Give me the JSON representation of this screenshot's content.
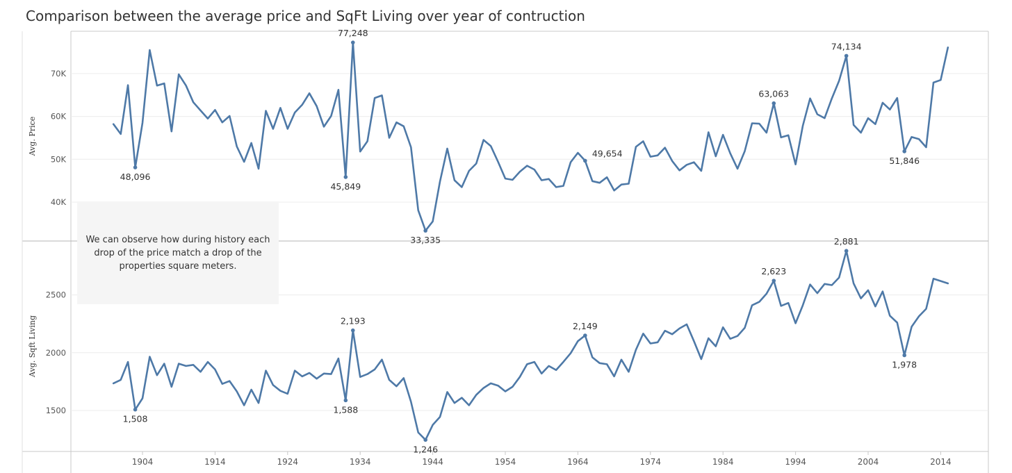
{
  "title": "Comparison between the average price and SqFt Living over year of contruction",
  "annotation": "We can observe how during history each drop of the price match a drop of the properties square meters.",
  "colors": {
    "line": "#4e79a7",
    "grid": "#ececec",
    "axis": "#c8c8c8",
    "text": "#333333"
  },
  "chart_data": [
    {
      "type": "line",
      "ylabel": "Avg. Price",
      "ylim": [
        33000,
        78000
      ],
      "yticks": [
        40000,
        50000,
        60000,
        70000
      ],
      "ytick_labels": [
        "40K",
        "50K",
        "60K",
        "70K"
      ],
      "grid": true,
      "x": [
        1900,
        1901,
        1902,
        1903,
        1904,
        1905,
        1906,
        1907,
        1908,
        1909,
        1910,
        1911,
        1912,
        1913,
        1914,
        1915,
        1916,
        1917,
        1918,
        1919,
        1920,
        1921,
        1922,
        1923,
        1924,
        1925,
        1926,
        1927,
        1928,
        1929,
        1930,
        1931,
        1932,
        1933,
        1934,
        1935,
        1936,
        1937,
        1938,
        1939,
        1940,
        1941,
        1942,
        1943,
        1944,
        1945,
        1946,
        1947,
        1948,
        1949,
        1950,
        1951,
        1952,
        1953,
        1954,
        1955,
        1956,
        1957,
        1958,
        1959,
        1960,
        1961,
        1962,
        1963,
        1964,
        1965,
        1966,
        1967,
        1968,
        1969,
        1970,
        1971,
        1972,
        1973,
        1974,
        1975,
        1976,
        1977,
        1978,
        1979,
        1980,
        1981,
        1982,
        1983,
        1984,
        1985,
        1986,
        1987,
        1988,
        1989,
        1990,
        1991,
        1992,
        1993,
        1994,
        1995,
        1996,
        1997,
        1998,
        1999,
        2000,
        2001,
        2002,
        2003,
        2004,
        2005,
        2006,
        2007,
        2008,
        2009,
        2010,
        2011,
        2012,
        2013,
        2014,
        2015
      ],
      "values": [
        58200,
        55900,
        67300,
        48096,
        58500,
        75500,
        67200,
        67700,
        56500,
        69800,
        67200,
        63300,
        61400,
        59500,
        61500,
        58600,
        60100,
        53000,
        49400,
        53800,
        47800,
        61300,
        57100,
        62000,
        57100,
        60900,
        62700,
        65400,
        62400,
        57600,
        60100,
        66200,
        45849,
        77248,
        51800,
        54200,
        64300,
        64900,
        55000,
        58600,
        57700,
        52800,
        38100,
        33335,
        35500,
        44800,
        52500,
        45100,
        43500,
        47300,
        49000,
        54500,
        53100,
        49400,
        45500,
        45200,
        47100,
        48500,
        47600,
        45100,
        45400,
        43500,
        43800,
        49300,
        51500,
        49654,
        44900,
        44500,
        45800,
        42700,
        44100,
        44300,
        52900,
        54200,
        50600,
        50900,
        52700,
        49600,
        47400,
        48700,
        49300,
        47300,
        56300,
        50700,
        55700,
        51400,
        47800,
        51900,
        58400,
        58300,
        56200,
        63063,
        55100,
        55600,
        48800,
        57800,
        64200,
        60500,
        59600,
        64200,
        68300,
        74134,
        58000,
        56200,
        59600,
        58200,
        63200,
        61600,
        64300,
        51846,
        55200,
        54700,
        52800,
        67900,
        68500,
        76100
      ]
    },
    {
      "type": "line",
      "ylabel": "Avg. Sqft Living",
      "ylim": [
        1240,
        2950
      ],
      "yticks": [
        1500,
        2000,
        2500
      ],
      "ytick_labels": [
        "1500",
        "2000",
        "2500"
      ],
      "grid": true,
      "x": [
        1900,
        1901,
        1902,
        1903,
        1904,
        1905,
        1906,
        1907,
        1908,
        1909,
        1910,
        1911,
        1912,
        1913,
        1914,
        1915,
        1916,
        1917,
        1918,
        1919,
        1920,
        1921,
        1922,
        1923,
        1924,
        1925,
        1926,
        1927,
        1928,
        1929,
        1930,
        1931,
        1932,
        1933,
        1934,
        1935,
        1936,
        1937,
        1938,
        1939,
        1940,
        1941,
        1942,
        1943,
        1944,
        1945,
        1946,
        1947,
        1948,
        1949,
        1950,
        1951,
        1952,
        1953,
        1954,
        1955,
        1956,
        1957,
        1958,
        1959,
        1960,
        1961,
        1962,
        1963,
        1964,
        1965,
        1966,
        1967,
        1968,
        1969,
        1970,
        1971,
        1972,
        1973,
        1974,
        1975,
        1976,
        1977,
        1978,
        1979,
        1980,
        1981,
        1982,
        1983,
        1984,
        1985,
        1986,
        1987,
        1988,
        1989,
        1990,
        1991,
        1992,
        1993,
        1994,
        1995,
        1996,
        1997,
        1998,
        1999,
        2000,
        2001,
        2002,
        2003,
        2004,
        2005,
        2006,
        2007,
        2008,
        2009,
        2010,
        2011,
        2012,
        2013,
        2014,
        2015
      ],
      "values": [
        1735,
        1765,
        1920,
        1508,
        1605,
        1965,
        1805,
        1905,
        1705,
        1905,
        1885,
        1895,
        1835,
        1920,
        1855,
        1730,
        1755,
        1665,
        1545,
        1680,
        1565,
        1845,
        1720,
        1670,
        1645,
        1845,
        1795,
        1825,
        1775,
        1820,
        1815,
        1950,
        1588,
        2193,
        1790,
        1815,
        1855,
        1940,
        1765,
        1710,
        1780,
        1575,
        1310,
        1246,
        1375,
        1445,
        1660,
        1565,
        1610,
        1545,
        1635,
        1695,
        1735,
        1715,
        1665,
        1705,
        1790,
        1900,
        1920,
        1820,
        1885,
        1850,
        1920,
        1995,
        2100,
        2149,
        1960,
        1910,
        1900,
        1795,
        1940,
        1835,
        2025,
        2165,
        2080,
        2090,
        2190,
        2160,
        2210,
        2245,
        2100,
        1945,
        2125,
        2055,
        2220,
        2120,
        2145,
        2215,
        2410,
        2440,
        2510,
        2623,
        2405,
        2430,
        2255,
        2410,
        2590,
        2515,
        2595,
        2585,
        2650,
        2881,
        2600,
        2470,
        2540,
        2400,
        2530,
        2320,
        2260,
        1978,
        2225,
        2315,
        2380,
        2640,
        2620,
        2600
      ]
    }
  ],
  "data_labels": [
    {
      "chart": 0,
      "year": 1903,
      "text": "48,096",
      "pos": "below"
    },
    {
      "chart": 0,
      "year": 1932,
      "text": "45,849",
      "pos": "below"
    },
    {
      "chart": 0,
      "year": 1933,
      "text": "77,248",
      "pos": "above"
    },
    {
      "chart": 0,
      "year": 1943,
      "text": "33,335",
      "pos": "below"
    },
    {
      "chart": 0,
      "year": 1965,
      "text": "49,654",
      "pos": "right"
    },
    {
      "chart": 0,
      "year": 1991,
      "text": "63,063",
      "pos": "above"
    },
    {
      "chart": 0,
      "year": 2001,
      "text": "74,134",
      "pos": "above"
    },
    {
      "chart": 0,
      "year": 2009,
      "text": "51,846",
      "pos": "below"
    },
    {
      "chart": 1,
      "year": 1903,
      "text": "1,508",
      "pos": "below"
    },
    {
      "chart": 1,
      "year": 1932,
      "text": "1,588",
      "pos": "below"
    },
    {
      "chart": 1,
      "year": 1933,
      "text": "2,193",
      "pos": "above"
    },
    {
      "chart": 1,
      "year": 1943,
      "text": "1,246",
      "pos": "below"
    },
    {
      "chart": 1,
      "year": 1965,
      "text": "2,149",
      "pos": "above"
    },
    {
      "chart": 1,
      "year": 1991,
      "text": "2,623",
      "pos": "above"
    },
    {
      "chart": 1,
      "year": 2001,
      "text": "2,881",
      "pos": "above"
    },
    {
      "chart": 1,
      "year": 2009,
      "text": "1,978",
      "pos": "below"
    }
  ],
  "x_axis": {
    "ticks": [
      1904,
      1914,
      1924,
      1934,
      1944,
      1954,
      1964,
      1974,
      1984,
      1994,
      2004,
      2014
    ],
    "tick_labels": [
      "1904",
      "1914",
      "1924",
      "1934",
      "1944",
      "1954",
      "1964",
      "1974",
      "1984",
      "1994",
      "2004",
      "2014"
    ]
  }
}
